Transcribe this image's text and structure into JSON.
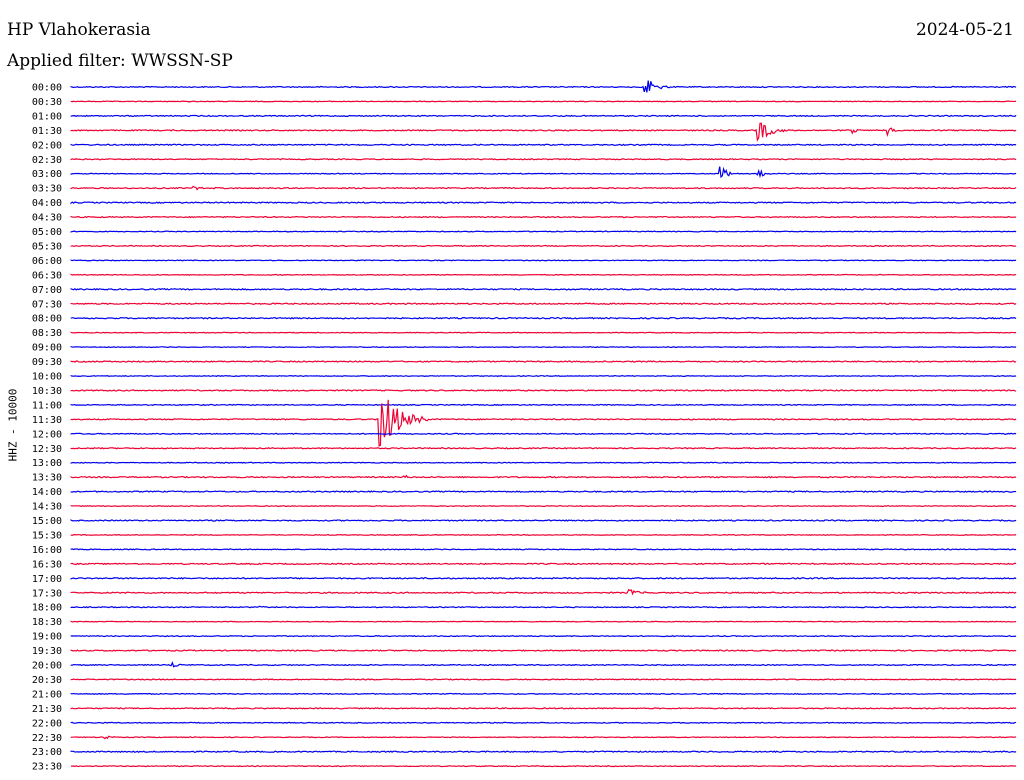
{
  "header": {
    "station": "HP Vlahokerasia",
    "date": "2024-05-21",
    "filter": "Applied filter: WWSSN-SP"
  },
  "colors": {
    "even_trace": "#0000ee",
    "odd_trace": "#ee0033",
    "text": "#000000"
  },
  "chart_data": {
    "type": "line",
    "title": "HP Vlahokerasia",
    "ylabel": "HHZ - 10000",
    "grid": false,
    "series_count": 48,
    "categories": [
      "00:00",
      "00:30",
      "01:00",
      "01:30",
      "02:00",
      "02:30",
      "03:00",
      "03:30",
      "04:00",
      "04:30",
      "05:00",
      "05:30",
      "06:00",
      "06:30",
      "07:00",
      "07:30",
      "08:00",
      "08:30",
      "09:00",
      "09:30",
      "10:00",
      "10:30",
      "11:00",
      "11:30",
      "12:00",
      "12:30",
      "13:00",
      "13:30",
      "14:00",
      "14:30",
      "15:00",
      "15:30",
      "16:00",
      "16:30",
      "17:00",
      "17:30",
      "18:00",
      "18:30",
      "19:00",
      "19:30",
      "20:00",
      "20:30",
      "21:00",
      "21:30",
      "22:00",
      "22:30",
      "23:00",
      "23:30"
    ],
    "x_range_minutes": [
      0,
      30
    ],
    "events": [
      {
        "row": "00:00",
        "minute": 18.2,
        "amplitude": 0.75,
        "duration_min": 0.8
      },
      {
        "row": "01:30",
        "minute": 21.8,
        "amplitude": 0.9,
        "duration_min": 1.0
      },
      {
        "row": "01:30",
        "minute": 24.8,
        "amplitude": 0.2,
        "duration_min": 0.5
      },
      {
        "row": "01:30",
        "minute": 25.9,
        "amplitude": 0.35,
        "duration_min": 0.5
      },
      {
        "row": "03:00",
        "minute": 20.6,
        "amplitude": 0.55,
        "duration_min": 0.6
      },
      {
        "row": "03:00",
        "minute": 21.8,
        "amplitude": 0.35,
        "duration_min": 0.5
      },
      {
        "row": "03:30",
        "minute": 3.9,
        "amplitude": 0.15,
        "duration_min": 1.0
      },
      {
        "row": "11:30",
        "minute": 9.8,
        "amplitude": 2.4,
        "duration_min": 1.5
      },
      {
        "row": "13:30",
        "minute": 10.6,
        "amplitude": 0.15,
        "duration_min": 0.4
      },
      {
        "row": "17:30",
        "minute": 17.7,
        "amplitude": 0.3,
        "duration_min": 0.6
      },
      {
        "row": "20:00",
        "minute": 3.2,
        "amplitude": 0.3,
        "duration_min": 0.4
      },
      {
        "row": "18:00",
        "minute": 6.0,
        "amplitude": 0.1,
        "duration_min": 0.8
      },
      {
        "row": "22:30",
        "minute": 1.1,
        "amplitude": 0.12,
        "duration_min": 0.6
      }
    ]
  }
}
